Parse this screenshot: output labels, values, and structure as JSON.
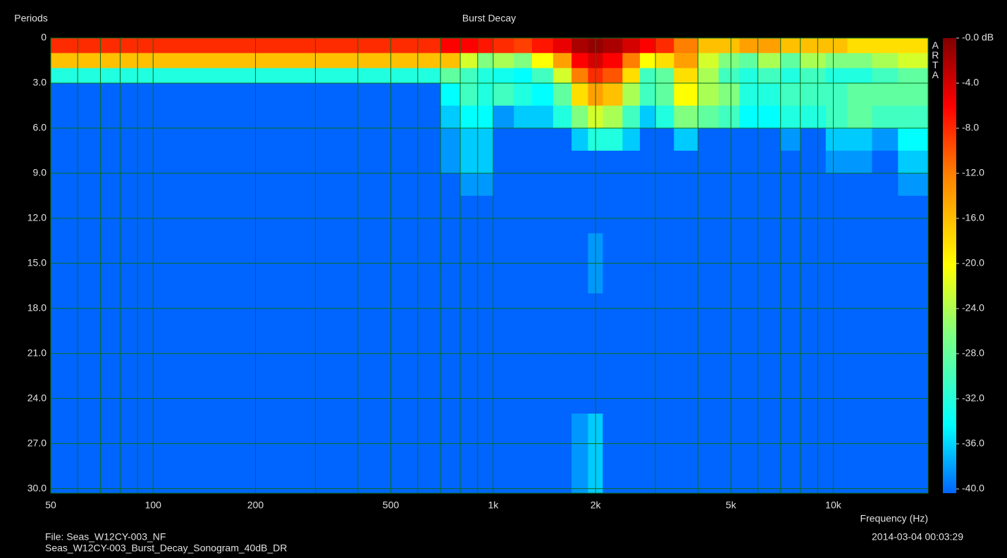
{
  "chart_data": {
    "type": "heatmap",
    "title": "Burst Decay",
    "y_label": "Periods",
    "x_label": "Frequency (Hz)",
    "watermark": "ARTA",
    "footer_file": "File: Seas_W12CY-003_NF",
    "footer_name": "Seas_W12CY-003_Burst_Decay_Sonogram_40dB_DR",
    "footer_date": "2014-03-04  00:03:29",
    "x_log": true,
    "y_inverted": true,
    "grid": true,
    "grid_color": "#0b6e1a",
    "background": "#000000",
    "xlim": [
      50,
      19000
    ],
    "xticks": [
      50,
      100,
      200,
      500,
      {
        "value": 1000,
        "label": "1k"
      },
      {
        "value": 2000,
        "label": "2k"
      },
      {
        "value": 5000,
        "label": "5k"
      },
      {
        "value": 10000,
        "label": "10k"
      }
    ],
    "xminor": [
      60,
      70,
      80,
      90,
      300,
      400,
      600,
      700,
      800,
      900,
      3000,
      4000,
      6000,
      7000,
      8000,
      9000
    ],
    "ylim": [
      0,
      30.3
    ],
    "yticks": [
      0,
      {
        "value": 3,
        "label": "3.0"
      },
      {
        "value": 6,
        "label": "6.0"
      },
      {
        "value": 9,
        "label": "9.0"
      },
      {
        "value": 12,
        "label": "12.0"
      },
      {
        "value": 15,
        "label": "15.0"
      },
      {
        "value": 18,
        "label": "18.0"
      },
      {
        "value": 21,
        "label": "21.0"
      },
      {
        "value": 24,
        "label": "24.0"
      },
      {
        "value": 27,
        "label": "27.0"
      },
      {
        "value": 30,
        "label": "30.0"
      }
    ],
    "zlim": [
      -40,
      0
    ],
    "zticks": [
      {
        "value": 0,
        "label": "-0.0 dB"
      },
      {
        "value": -4,
        "label": "-4.0"
      },
      {
        "value": -8,
        "label": "-8.0"
      },
      {
        "value": -12,
        "label": "-12.0"
      },
      {
        "value": -16,
        "label": "-16.0"
      },
      {
        "value": -20,
        "label": "-20.0"
      },
      {
        "value": -24,
        "label": "-24.0"
      },
      {
        "value": -28,
        "label": "-28.0"
      },
      {
        "value": -32,
        "label": "-32.0"
      },
      {
        "value": -36,
        "label": "-36.0"
      },
      {
        "value": -40,
        "label": "-40.0"
      }
    ],
    "colorscale": [
      [
        -40,
        "#0064ff"
      ],
      [
        -34,
        "#00ffff"
      ],
      [
        -26,
        "#80ff80"
      ],
      [
        -20,
        "#ffff00"
      ],
      [
        -12,
        "#ff8000"
      ],
      [
        -6,
        "#ff0000"
      ],
      [
        0,
        "#800000"
      ]
    ],
    "x_edges": [
      50,
      700,
      800,
      900,
      1000,
      1150,
      1300,
      1500,
      1700,
      1900,
      2100,
      2400,
      2700,
      3000,
      3400,
      4000,
      4600,
      5300,
      6000,
      7000,
      8000,
      9500,
      11000,
      13000,
      15500,
      19000
    ],
    "y_edges": [
      0,
      1,
      2,
      3,
      4.5,
      6,
      7.5,
      9,
      10.5,
      13,
      17,
      25,
      30.3
    ],
    "z": [
      [
        -8,
        -6,
        -6,
        -7,
        -8,
        -9,
        -7,
        -5,
        -2,
        -1,
        -2,
        -4,
        -6,
        -8,
        -12,
        -16,
        -16,
        -14,
        -14,
        -16,
        -16,
        -16,
        -18,
        -18,
        -18
      ],
      [
        -16,
        -16,
        -22,
        -26,
        -24,
        -26,
        -20,
        -14,
        -6,
        -4,
        -6,
        -12,
        -20,
        -18,
        -14,
        -22,
        -26,
        -28,
        -24,
        -28,
        -24,
        -26,
        -26,
        -24,
        -22
      ],
      [
        -32,
        -28,
        -30,
        -32,
        -33,
        -34,
        -30,
        -22,
        -12,
        -8,
        -10,
        -18,
        -30,
        -28,
        -18,
        -24,
        -30,
        -32,
        -30,
        -32,
        -30,
        -32,
        -32,
        -30,
        -28
      ],
      [
        -40,
        -34,
        -30,
        -32,
        -30,
        -32,
        -34,
        -28,
        -18,
        -14,
        -16,
        -24,
        -30,
        -28,
        -20,
        -24,
        -26,
        -32,
        -32,
        -30,
        -30,
        -30,
        -28,
        -28,
        -28
      ],
      [
        -40,
        -36,
        -34,
        -34,
        -38,
        -36,
        -36,
        -32,
        -26,
        -22,
        -24,
        -30,
        -36,
        -32,
        -26,
        -28,
        -30,
        -34,
        -34,
        -32,
        -32,
        -30,
        -28,
        -30,
        -30
      ],
      [
        -40,
        -38,
        -36,
        -36,
        -40,
        -40,
        -40,
        -40,
        -36,
        -32,
        -32,
        -36,
        -40,
        -40,
        -36,
        -40,
        -40,
        -40,
        -40,
        -38,
        -40,
        -36,
        -36,
        -38,
        -34
      ],
      [
        -40,
        -38,
        -36,
        -36,
        -40,
        -40,
        -40,
        -40,
        -40,
        -40,
        -40,
        -40,
        -40,
        -40,
        -40,
        -40,
        -40,
        -40,
        -40,
        -40,
        -40,
        -38,
        -38,
        -40,
        -36
      ],
      [
        -40,
        -40,
        -38,
        -38,
        -40,
        -40,
        -40,
        -40,
        -40,
        -40,
        -40,
        -40,
        -40,
        -40,
        -40,
        -40,
        -40,
        -40,
        -40,
        -40,
        -40,
        -40,
        -40,
        -40,
        -38
      ],
      [
        -40,
        -40,
        -40,
        -40,
        -40,
        -40,
        -40,
        -40,
        -40,
        -40,
        -40,
        -40,
        -40,
        -40,
        -40,
        -40,
        -40,
        -40,
        -40,
        -40,
        -40,
        -40,
        -40,
        -40,
        -40
      ],
      [
        -40,
        -40,
        -40,
        -40,
        -40,
        -40,
        -40,
        -40,
        -40,
        -38,
        -40,
        -40,
        -40,
        -40,
        -40,
        -40,
        -40,
        -40,
        -40,
        -40,
        -40,
        -40,
        -40,
        -40,
        -40
      ],
      [
        -40,
        -40,
        -40,
        -40,
        -40,
        -40,
        -40,
        -40,
        -40,
        -40,
        -40,
        -40,
        -40,
        -40,
        -40,
        -40,
        -40,
        -40,
        -40,
        -40,
        -40,
        -40,
        -40,
        -40,
        -40
      ],
      [
        -40,
        -40,
        -40,
        -40,
        -40,
        -40,
        -40,
        -40,
        -38,
        -36,
        -40,
        -40,
        -40,
        -40,
        -40,
        -40,
        -40,
        -40,
        -40,
        -40,
        -40,
        -40,
        -40,
        -40,
        -40
      ]
    ]
  }
}
